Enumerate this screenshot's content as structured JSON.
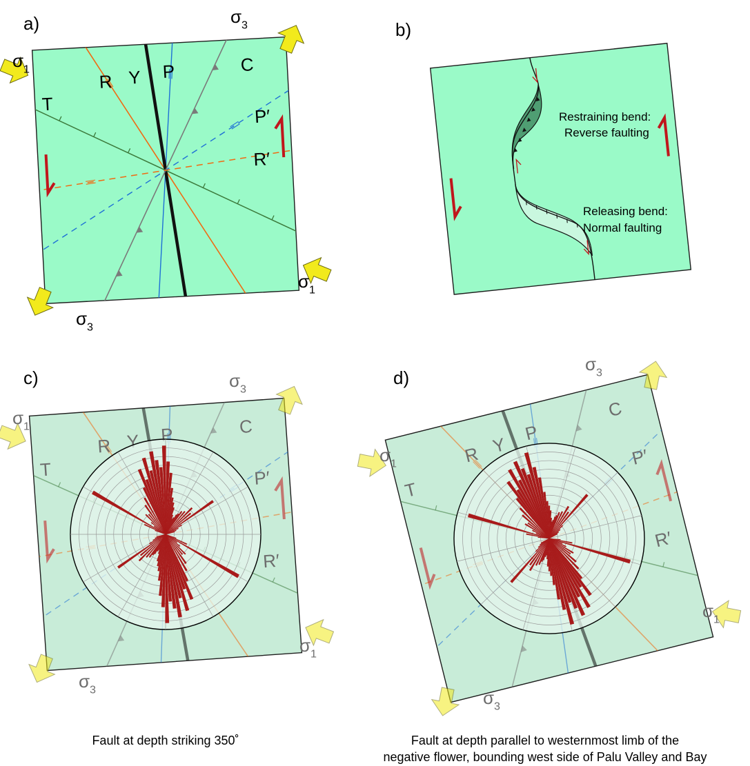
{
  "panels": {
    "a": {
      "label": "a)",
      "lines": {
        "R": "R",
        "Y": "Y",
        "P": "P",
        "C": "C",
        "T": "T",
        "P_prime": "P′",
        "R_prime": "R′"
      },
      "stress": {
        "sigma": "σ",
        "sub1": "1",
        "sub3": "3"
      }
    },
    "b": {
      "label": "b)",
      "restraining": [
        "Restraining bend:",
        "Reverse faulting"
      ],
      "releasing": [
        "Releasing bend:",
        "Normal faulting"
      ]
    },
    "c": {
      "label": "c)",
      "lines": {
        "R": "R",
        "Y": "Y",
        "P": "P",
        "C": "C",
        "T": "T",
        "P_prime": "P′",
        "R_prime": "R′"
      },
      "stress": {
        "sigma": "σ",
        "sub1": "1",
        "sub3": "3"
      }
    },
    "d": {
      "label": "d)",
      "lines": {
        "R": "R",
        "Y": "Y",
        "P": "P",
        "C": "C",
        "T": "T",
        "P_prime": "P′",
        "R_prime": "R′"
      },
      "stress": {
        "sigma": "σ",
        "sub1": "1",
        "sub3": "3"
      }
    }
  },
  "captions": {
    "c": "Fault at depth striking 350˚",
    "d": [
      "Fault at depth parallel to westernmost limb of the",
      "negative flower, bounding west side of Palu Valley and Bay"
    ]
  },
  "rose": {
    "bins_deg": [
      -25,
      -22,
      -19,
      -16,
      -13,
      -10,
      -7,
      -4,
      -1,
      2,
      5,
      8,
      11,
      14,
      17,
      20,
      23,
      26,
      29,
      32,
      35,
      40,
      45,
      50,
      55,
      60,
      65,
      70,
      75,
      -30,
      -35,
      -40,
      -45,
      -50,
      -55,
      -60,
      -65,
      -70
    ],
    "lengths": [
      0.55,
      0.75,
      0.62,
      0.85,
      0.7,
      0.9,
      0.8,
      0.72,
      0.95,
      0.78,
      0.66,
      0.5,
      0.4,
      0.35,
      0.3,
      0.22,
      0.18,
      0.2,
      0.24,
      0.26,
      0.3,
      0.32,
      0.4,
      0.35,
      0.62,
      0.2,
      0.15,
      0.12,
      0.1,
      0.45,
      0.38,
      0.28,
      0.3,
      0.2,
      0.15,
      0.9,
      0.25,
      0.12
    ]
  },
  "colors": {
    "panel_bright": "#9afac8",
    "panel_pale": "#c8ecd8",
    "circle_fill": "#e6f6ee",
    "rose": "#a81a1a",
    "sense_arrow": "#c0161c",
    "stress_arrow": "#f2ea1c",
    "R_line": "#f06a12",
    "P_line": "#1e6fd6",
    "C_line": "#7a7a7a",
    "T_line": "#3c7a3c",
    "Y_line": "#111111",
    "bend_dark": "#4f9e73",
    "bend_light": "#c9f7df"
  }
}
